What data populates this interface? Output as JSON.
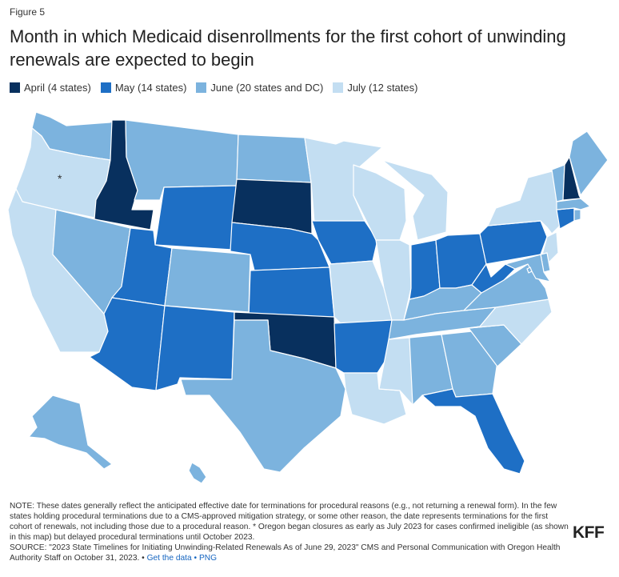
{
  "figure_label": "Figure 5",
  "title": "Month in which Medicaid disenrollments for the first cohort of unwinding renewals are expected to begin",
  "colors": {
    "April": "#08305e",
    "May": "#1e6fc5",
    "June": "#7cb3de",
    "July": "#c3def2"
  },
  "legend": [
    {
      "key": "April",
      "label": "April (4 states)"
    },
    {
      "key": "May",
      "label": "May (14 states)"
    },
    {
      "key": "June",
      "label": "June (20 states and DC)"
    },
    {
      "key": "July",
      "label": "July (12 states)"
    }
  ],
  "states": {
    "AK": "June",
    "AL": "June",
    "AR": "May",
    "AZ": "May",
    "CA": "July",
    "CO": "June",
    "CT": "May",
    "DC": "June",
    "DE": "June",
    "FL": "May",
    "GA": "June",
    "HI": "June",
    "IA": "May",
    "ID": "April",
    "IL": "July",
    "IN": "May",
    "KS": "May",
    "KY": "June",
    "LA": "July",
    "MA": "June",
    "MD": "June",
    "ME": "June",
    "MI": "July",
    "MN": "July",
    "MO": "July",
    "MS": "July",
    "MT": "June",
    "NC": "July",
    "ND": "June",
    "NE": "May",
    "NH": "April",
    "NJ": "July",
    "NM": "May",
    "NV": "June",
    "NY": "July",
    "OH": "May",
    "OK": "April",
    "OR": "July",
    "PA": "May",
    "RI": "June",
    "SC": "June",
    "SD": "April",
    "TN": "June",
    "TX": "June",
    "UT": "May",
    "VA": "June",
    "VT": "June",
    "WA": "June",
    "WI": "July",
    "WV": "May",
    "WY": "May"
  },
  "oregon_marker": "*",
  "note": {
    "text": "NOTE: These dates generally reflect the anticipated effective date for terminations for procedural reasons (e.g., not returning a renewal form). In the few states holding procedural terminations due to a CMS-approved mitigation strategy, or some other reason, the date represents terminations for the first cohort of renewals, not including those due to a procedural reason. * Oregon began closures as early as July 2023 for cases confirmed ineligible (as shown in this map) but delayed procedural terminations until October 2023.",
    "source": "SOURCE: \"2023 State Timelines for Initiating Unwinding-Related Renewals As of June 29, 2023\" CMS and Personal Communication with Oregon Health Authority Staff on October 31, 2023. •",
    "get_data": "Get the data",
    "separator": "•",
    "png": "PNG"
  },
  "logo": "KFF"
}
